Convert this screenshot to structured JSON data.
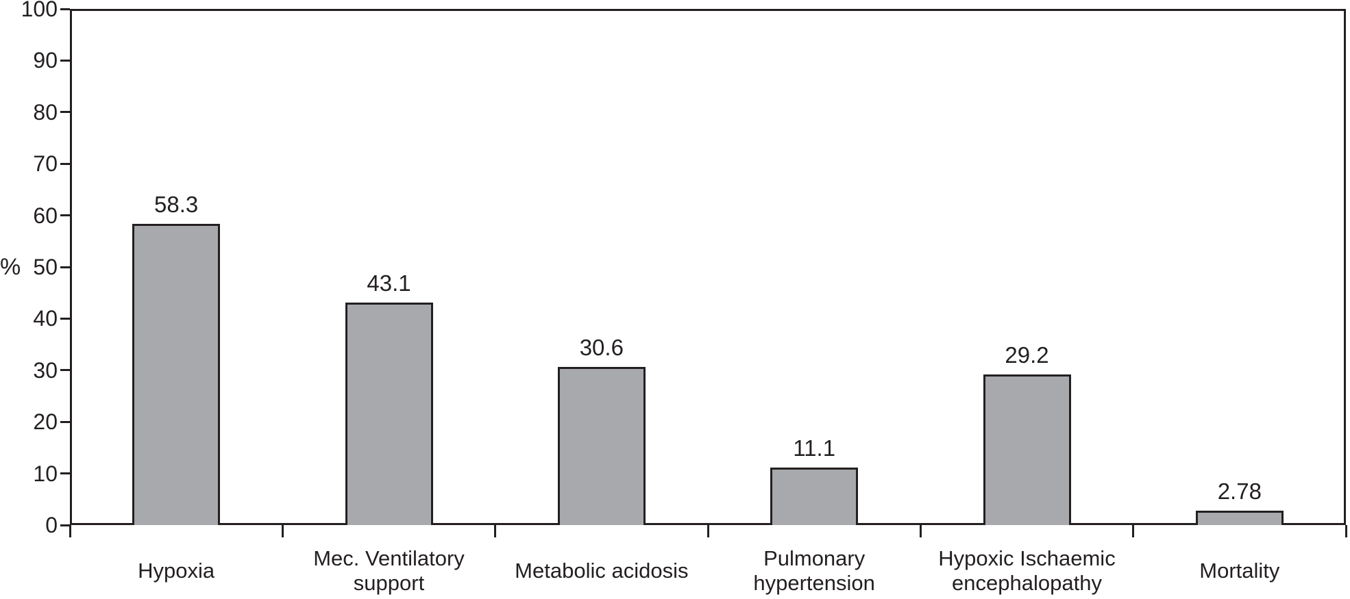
{
  "chart_data": {
    "type": "bar",
    "title": "",
    "xlabel": "",
    "ylabel": "%",
    "ylim": [
      0,
      100
    ],
    "yticks": [
      0,
      10,
      20,
      30,
      40,
      50,
      60,
      70,
      80,
      90,
      100
    ],
    "grid": false,
    "legend": "none",
    "frame": "full-box",
    "categories": [
      "Hypoxia",
      "Mec. Ventilatory support",
      "Metabolic acidosis",
      "Pulmonary hypertension",
      "Hypoxic Ischaemic encephalopathy",
      "Mortality"
    ],
    "category_lines": [
      [
        "Hypoxia"
      ],
      [
        "Mec. Ventilatory",
        "support"
      ],
      [
        "Metabolic acidosis"
      ],
      [
        "Pulmonary",
        "hypertension"
      ],
      [
        "Hypoxic Ischaemic",
        "encephalopathy"
      ],
      [
        "Mortality"
      ]
    ],
    "values": [
      58.3,
      43.1,
      30.6,
      11.1,
      29.2,
      2.78
    ],
    "value_labels": [
      "58.3",
      "43.1",
      "30.6",
      "11.1",
      "29.2",
      "2.78"
    ],
    "colors": {
      "bar_fill": "#A7A9AC",
      "bar_border": "#231F20",
      "axis": "#231F20",
      "text": "#231F20",
      "background": "#ffffff"
    }
  }
}
